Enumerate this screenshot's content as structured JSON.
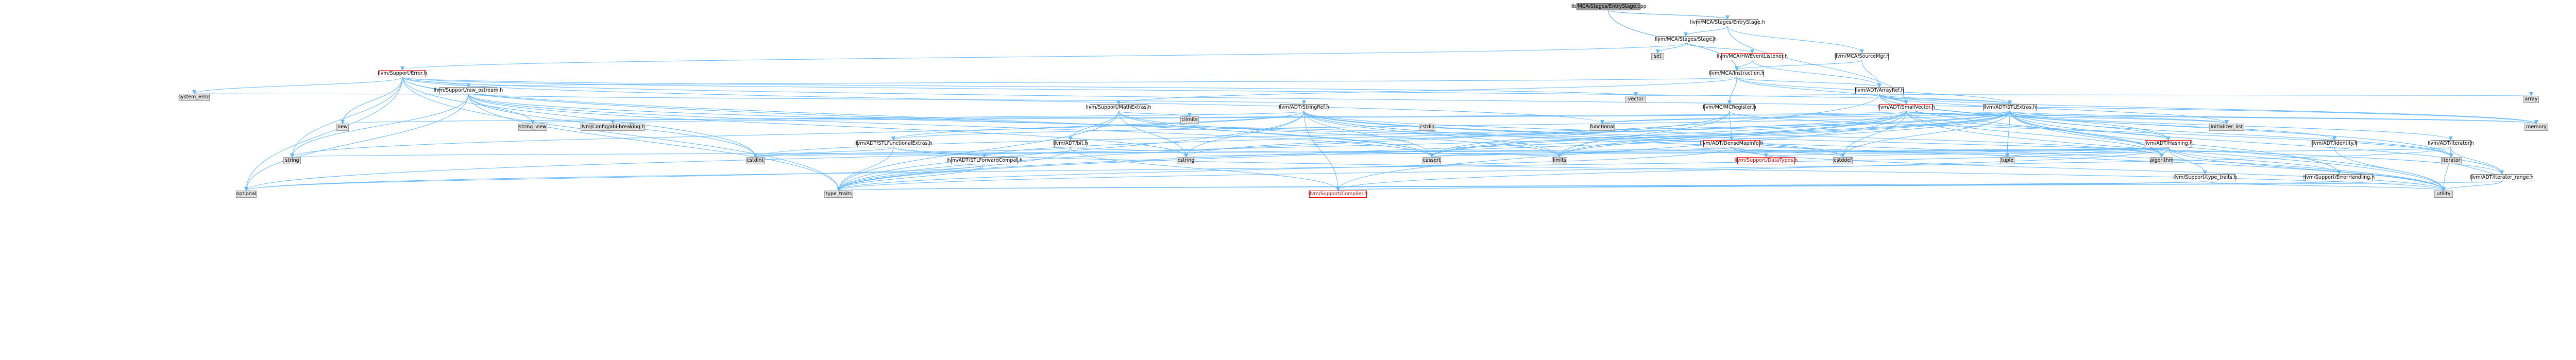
{
  "graph_title": "lib/MCA/Stages/EntryStage.cpp",
  "colors": {
    "edge": "#63b8ff",
    "edge_root": "#4ea0e8",
    "node_border": "#666666",
    "node_border_red": "#ff0000",
    "external_fill": "#e0e0e0",
    "root_fill": "#999999"
  },
  "nodes": [
    {
      "id": "root",
      "label": "lib/MCA/Stages/EntryStage.cpp",
      "style": "root"
    },
    {
      "id": "entrystage_h",
      "label": "llvm/MCA/Stages/EntryStage.h",
      "style": "plain"
    },
    {
      "id": "stage_h",
      "label": "llvm/MCA/Stages/Stage.h",
      "style": "plain"
    },
    {
      "id": "set",
      "label": "set",
      "style": "grey"
    },
    {
      "id": "hweventlistener",
      "label": "llvm/MCA/HWEventListener.h",
      "style": "red"
    },
    {
      "id": "sourcemgr",
      "label": "llvm/MCA/SourceMgr.h",
      "style": "plain"
    },
    {
      "id": "error_h",
      "label": "llvm/Support/Error.h",
      "style": "red"
    },
    {
      "id": "instruction_h",
      "label": "llvm/MCA/Instruction.h",
      "style": "plain"
    },
    {
      "id": "arrayref_h",
      "label": "llvm/ADT/ArrayRef.h",
      "style": "plain"
    },
    {
      "id": "raw_ostream",
      "label": "llvm/Support/raw_ostream.h",
      "style": "plain"
    },
    {
      "id": "system_error",
      "label": "system_error",
      "style": "grey"
    },
    {
      "id": "mathextras",
      "label": "llvm/Support/MathExtras.h",
      "style": "plain"
    },
    {
      "id": "stringref",
      "label": "llvm/ADT/StringRef.h",
      "style": "plain"
    },
    {
      "id": "mcregister",
      "label": "llvm/MC/MCRegister.h",
      "style": "plain"
    },
    {
      "id": "smallvector",
      "label": "llvm/ADT/SmallVector.h",
      "style": "red"
    },
    {
      "id": "vector",
      "label": "vector",
      "style": "grey"
    },
    {
      "id": "stlextras",
      "label": "llvm/ADT/STLExtras.h",
      "style": "plain"
    },
    {
      "id": "array",
      "label": "array",
      "style": "grey"
    },
    {
      "id": "new",
      "label": "new",
      "style": "grey"
    },
    {
      "id": "string_view",
      "label": "string_view",
      "style": "grey"
    },
    {
      "id": "config_abi",
      "label": "llvm/Config/abi-breaking.h",
      "style": "grey"
    },
    {
      "id": "climits",
      "label": "climits",
      "style": "grey"
    },
    {
      "id": "cstdio",
      "label": "cstdio",
      "style": "grey"
    },
    {
      "id": "functional",
      "label": "functional",
      "style": "grey"
    },
    {
      "id": "initializer_list",
      "label": "initializer_list",
      "style": "grey"
    },
    {
      "id": "memory",
      "label": "memory",
      "style": "grey"
    },
    {
      "id": "stlfunctionalextras",
      "label": "llvm/ADT/STLFunctionalExtras.h",
      "style": "plain"
    },
    {
      "id": "bit_h",
      "label": "llvm/ADT/bit.h",
      "style": "plain"
    },
    {
      "id": "densemapinfo",
      "label": "llvm/ADT/DenseMapInfo.h",
      "style": "red"
    },
    {
      "id": "hashing_h",
      "label": "llvm/ADT/Hashing.h",
      "style": "red"
    },
    {
      "id": "identity_h",
      "label": "llvm/ADT/identity.h",
      "style": "plain"
    },
    {
      "id": "iterator_h",
      "label": "llvm/ADT/iterator.h",
      "style": "plain"
    },
    {
      "id": "string",
      "label": "string",
      "style": "grey"
    },
    {
      "id": "cstdint",
      "label": "cstdint",
      "style": "grey"
    },
    {
      "id": "stlforwardcompat",
      "label": "llvm/ADT/STLForwardCompat.h",
      "style": "plain"
    },
    {
      "id": "cstring",
      "label": "cstring",
      "style": "grey"
    },
    {
      "id": "cassert",
      "label": "cassert",
      "style": "grey"
    },
    {
      "id": "limits",
      "label": "limits",
      "style": "grey"
    },
    {
      "id": "datatypes",
      "label": "llvm/Support/DataTypes.h",
      "style": "red-text"
    },
    {
      "id": "cstddef",
      "label": "cstddef",
      "style": "grey"
    },
    {
      "id": "tuple",
      "label": "tuple",
      "style": "grey"
    },
    {
      "id": "algorithm",
      "label": "algorithm",
      "style": "grey"
    },
    {
      "id": "type_traits_h",
      "label": "llvm/Support/type_traits.h",
      "style": "plain"
    },
    {
      "id": "errorhandling",
      "label": "llvm/Support/ErrorHandling.h",
      "style": "plain"
    },
    {
      "id": "iterator",
      "label": "iterator",
      "style": "grey"
    },
    {
      "id": "iterator_range",
      "label": "llvm/ADT/iterator_range.h",
      "style": "plain"
    },
    {
      "id": "optional",
      "label": "optional",
      "style": "grey"
    },
    {
      "id": "type_traits",
      "label": "type_traits",
      "style": "grey"
    },
    {
      "id": "compiler_h",
      "label": "llvm/Support/Compiler.h",
      "style": "red-text"
    },
    {
      "id": "utility",
      "label": "utility",
      "style": "grey"
    }
  ],
  "edges": [
    [
      "root",
      "entrystage_h"
    ],
    [
      "root",
      "instruction_h"
    ],
    [
      "entrystage_h",
      "stage_h"
    ],
    [
      "entrystage_h",
      "sourcemgr"
    ],
    [
      "entrystage_h",
      "smallvector"
    ],
    [
      "stage_h",
      "set"
    ],
    [
      "stage_h",
      "hweventlistener"
    ],
    [
      "stage_h",
      "error_h"
    ],
    [
      "hweventlistener",
      "instruction_h"
    ],
    [
      "hweventlistener",
      "arrayref_h"
    ],
    [
      "sourcemgr",
      "arrayref_h"
    ],
    [
      "sourcemgr",
      "instruction_h"
    ],
    [
      "instruction_h",
      "smallvector"
    ],
    [
      "instruction_h",
      "mcregister"
    ],
    [
      "instruction_h",
      "mathextras"
    ],
    [
      "instruction_h",
      "raw_ostream"
    ],
    [
      "instruction_h",
      "arrayref_h"
    ],
    [
      "instruction_h",
      "stlextras"
    ],
    [
      "error_h",
      "raw_ostream"
    ],
    [
      "error_h",
      "system_error"
    ],
    [
      "error_h",
      "string"
    ],
    [
      "error_h",
      "optional"
    ],
    [
      "error_h",
      "type_traits"
    ],
    [
      "error_h",
      "memory"
    ],
    [
      "error_h",
      "new"
    ],
    [
      "error_h",
      "cstdint"
    ],
    [
      "error_h",
      "cassert"
    ],
    [
      "error_h",
      "vector"
    ],
    [
      "error_h",
      "utility"
    ],
    [
      "error_h",
      "functional"
    ],
    [
      "error_h",
      "stlextras"
    ],
    [
      "arrayref_h",
      "smallvector"
    ],
    [
      "arrayref_h",
      "stlextras"
    ],
    [
      "arrayref_h",
      "array"
    ],
    [
      "arrayref_h",
      "vector"
    ],
    [
      "arrayref_h",
      "memory"
    ],
    [
      "arrayref_h",
      "initializer_list"
    ],
    [
      "arrayref_h",
      "algorithm"
    ],
    [
      "arrayref_h",
      "iterator"
    ],
    [
      "arrayref_h",
      "type_traits"
    ],
    [
      "arrayref_h",
      "hashing_h"
    ],
    [
      "raw_ostream",
      "stringref"
    ],
    [
      "raw_ostream",
      "string_view"
    ],
    [
      "raw_ostream",
      "system_error"
    ],
    [
      "raw_ostream",
      "cassert"
    ],
    [
      "raw_ostream",
      "cstddef"
    ],
    [
      "raw_ostream",
      "cstdint"
    ],
    [
      "raw_ostream",
      "cstring"
    ],
    [
      "raw_ostream",
      "string"
    ],
    [
      "raw_ostream",
      "type_traits"
    ],
    [
      "raw_ostream",
      "optional"
    ],
    [
      "mathextras",
      "bit_h"
    ],
    [
      "mathextras",
      "climits"
    ],
    [
      "mathextras",
      "cstring"
    ],
    [
      "mathextras",
      "limits"
    ],
    [
      "mathextras",
      "type_traits"
    ],
    [
      "mathextras",
      "cassert"
    ],
    [
      "stringref",
      "stlfunctionalextras"
    ],
    [
      "stringref",
      "iterator_range"
    ],
    [
      "stringref",
      "compiler_h"
    ],
    [
      "stringref",
      "algorithm"
    ],
    [
      "stringref",
      "cassert"
    ],
    [
      "stringref",
      "cstddef"
    ],
    [
      "stringref",
      "cstring"
    ],
    [
      "stringref",
      "limits"
    ],
    [
      "stringref",
      "string"
    ],
    [
      "stringref",
      "string_view"
    ],
    [
      "stringref",
      "type_traits"
    ],
    [
      "stringref",
      "utility"
    ],
    [
      "mcregister",
      "densemapinfo"
    ],
    [
      "mcregister",
      "hashing_h"
    ],
    [
      "mcregister",
      "cassert"
    ],
    [
      "mcregister",
      "limits"
    ],
    [
      "smallvector",
      "compiler_h"
    ],
    [
      "smallvector",
      "algorithm"
    ],
    [
      "smallvector",
      "cassert"
    ],
    [
      "smallvector",
      "cstddef"
    ],
    [
      "smallvector",
      "cstdlib_none"
    ],
    [
      "smallvector",
      "cstring"
    ],
    [
      "smallvector",
      "functional"
    ],
    [
      "smallvector",
      "initializer_list"
    ],
    [
      "smallvector",
      "iterator"
    ],
    [
      "smallvector",
      "limits"
    ],
    [
      "smallvector",
      "memory"
    ],
    [
      "smallvector",
      "new"
    ],
    [
      "smallvector",
      "type_traits"
    ],
    [
      "smallvector",
      "utility"
    ],
    [
      "stlextras",
      "stlforwardcompat"
    ],
    [
      "stlextras",
      "stlfunctionalextras"
    ],
    [
      "stlextras",
      "identity_h"
    ],
    [
      "stlextras",
      "iterator_h"
    ],
    [
      "stlextras",
      "iterator_range"
    ],
    [
      "stlextras",
      "config_abi"
    ],
    [
      "stlextras",
      "errorhandling"
    ],
    [
      "stlextras",
      "algorithm"
    ],
    [
      "stlextras",
      "cassert"
    ],
    [
      "stlextras",
      "cstddef"
    ],
    [
      "stlextras",
      "cstdint"
    ],
    [
      "stlextras",
      "cstdlib_none"
    ],
    [
      "stlextras",
      "functional"
    ],
    [
      "stlextras",
      "initializer_list"
    ],
    [
      "stlextras",
      "iterator"
    ],
    [
      "stlextras",
      "limits"
    ],
    [
      "stlextras",
      "memory"
    ],
    [
      "stlextras",
      "optional"
    ],
    [
      "stlextras",
      "tuple"
    ],
    [
      "stlextras",
      "type_traits"
    ],
    [
      "stlextras",
      "utility"
    ],
    [
      "stlextras",
      "hashing_h"
    ],
    [
      "stlfunctionalextras",
      "stlforwardcompat"
    ],
    [
      "stlfunctionalextras",
      "cstdint"
    ],
    [
      "stlfunctionalextras",
      "type_traits"
    ],
    [
      "stlfunctionalextras",
      "utility"
    ],
    [
      "stlforwardcompat",
      "optional"
    ],
    [
      "stlforwardcompat",
      "type_traits"
    ],
    [
      "bit_h",
      "compiler_h"
    ],
    [
      "bit_h",
      "cstdint"
    ],
    [
      "bit_h",
      "limits"
    ],
    [
      "bit_h",
      "type_traits"
    ],
    [
      "densemapinfo",
      "cassert"
    ],
    [
      "densemapinfo",
      "cstddef"
    ],
    [
      "densemapinfo",
      "cstdint"
    ],
    [
      "densemapinfo",
      "tuple"
    ],
    [
      "densemapinfo",
      "type_traits"
    ],
    [
      "densemapinfo",
      "utility"
    ],
    [
      "densemapinfo",
      "datatypes"
    ],
    [
      "hashing_h",
      "errorhandling"
    ],
    [
      "hashing_h",
      "type_traits_h"
    ],
    [
      "hashing_h",
      "algorithm"
    ],
    [
      "hashing_h",
      "cassert"
    ],
    [
      "hashing_h",
      "cstring"
    ],
    [
      "hashing_h",
      "optional"
    ],
    [
      "hashing_h",
      "string"
    ],
    [
      "hashing_h",
      "tuple"
    ],
    [
      "hashing_h",
      "utility"
    ],
    [
      "hashing_h",
      "datatypes"
    ],
    [
      "hashing_h",
      "compiler_h"
    ],
    [
      "iterator_h",
      "iterator_range"
    ],
    [
      "iterator_h",
      "cstddef"
    ],
    [
      "iterator_h",
      "iterator"
    ],
    [
      "iterator_h",
      "type_traits"
    ],
    [
      "iterator_h",
      "utility"
    ],
    [
      "iterator_range",
      "iterator"
    ],
    [
      "iterator_range",
      "type_traits"
    ],
    [
      "iterator_range",
      "utility"
    ],
    [
      "type_traits_h",
      "compiler_h"
    ],
    [
      "type_traits_h",
      "type_traits"
    ],
    [
      "type_traits_h",
      "utility"
    ],
    [
      "errorhandling",
      "compiler_h"
    ],
    [
      "identity_h",
      "utility"
    ]
  ]
}
